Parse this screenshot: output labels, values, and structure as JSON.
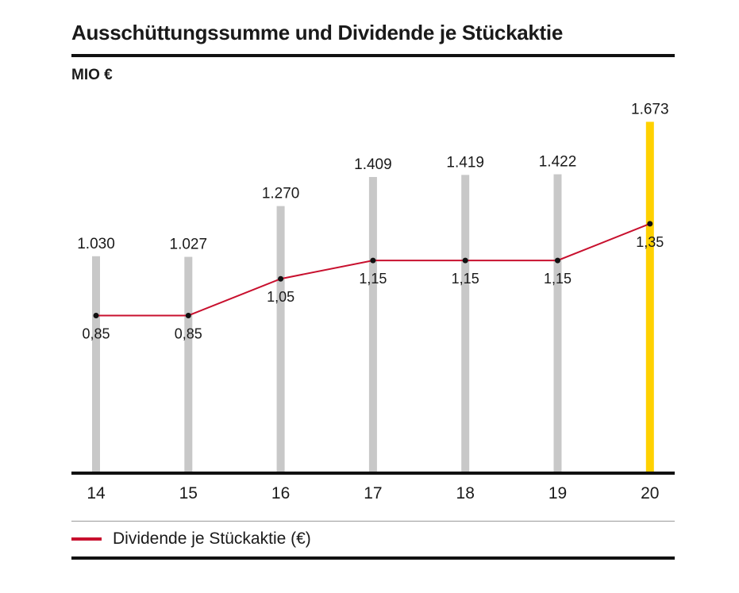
{
  "chart_data": {
    "type": "bar",
    "title": "Ausschüttungssumme und Dividende je Stückaktie",
    "unit_label": "MIO €",
    "categories": [
      "14",
      "15",
      "16",
      "17",
      "18",
      "19",
      "20"
    ],
    "series": [
      {
        "values": [
          1030,
          1027,
          1270,
          1409,
          1419,
          1422,
          1673
        ],
        "labels": [
          "1.030",
          "1.027",
          "1.270",
          "1.409",
          "1.419",
          "1.422",
          "1.673"
        ],
        "color": "#c8c8c8",
        "highlight_index": 6,
        "highlight_color": "#ffd100"
      },
      {
        "name": "Dividende je Stückaktie (€)",
        "type": "line",
        "values": [
          0.85,
          0.85,
          1.05,
          1.15,
          1.15,
          1.15,
          1.35
        ],
        "labels": [
          "0,85",
          "0,85",
          "1,05",
          "1,15",
          "1,15",
          "1,15",
          "1,35"
        ],
        "color": "#c8102e"
      }
    ],
    "ylim_bars": [
      0,
      1800
    ],
    "ylim_line": [
      0,
      2.05
    ],
    "grid": false,
    "legend": "bottom-left"
  }
}
